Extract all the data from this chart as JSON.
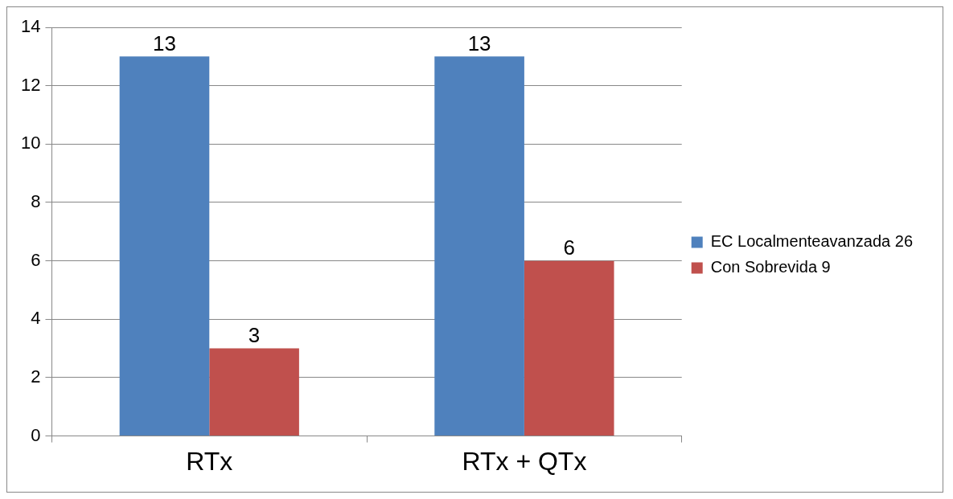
{
  "chart_data": {
    "type": "bar",
    "categories": [
      "RTx",
      "RTx + QTx"
    ],
    "series": [
      {
        "name": "EC Localmenteavanzada 26",
        "color": "#4f81bd",
        "values": [
          13,
          13
        ]
      },
      {
        "name": "Con Sobrevida 9",
        "color": "#c0504d",
        "values": [
          3,
          6
        ]
      }
    ],
    "ylim": [
      0,
      14
    ],
    "yticks": [
      0,
      2,
      4,
      6,
      8,
      10,
      12,
      14
    ],
    "grid": "y",
    "legend": "right",
    "data_labels": true
  }
}
